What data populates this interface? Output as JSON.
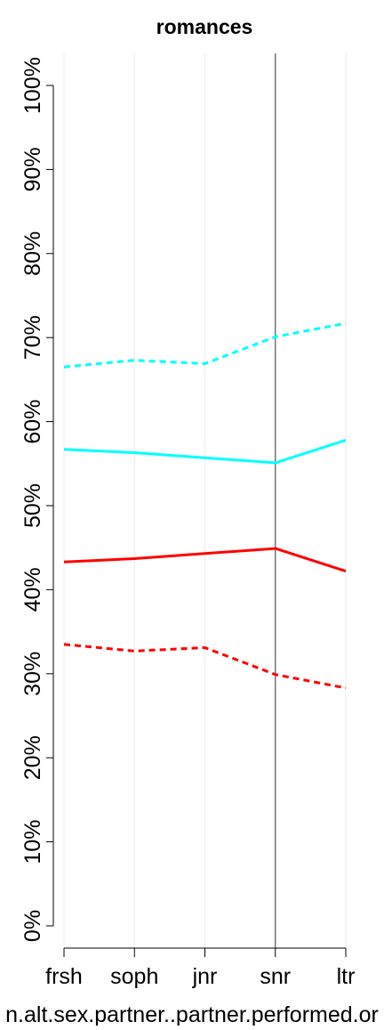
{
  "chart_data": {
    "type": "line",
    "title": "romances",
    "xlabel": "n.alt.sex.partner..partner.performed.or",
    "ylabel": "",
    "categories": [
      "frsh",
      "soph",
      "jnr",
      "snr",
      "ltr"
    ],
    "ylim": [
      0,
      100
    ],
    "y_ticks": [
      "0%",
      "10%",
      "20%",
      "30%",
      "40%",
      "50%",
      "60%",
      "70%",
      "80%",
      "90%",
      "100%"
    ],
    "grid": "vertical light gridlines",
    "reference_line_category": "snr",
    "series": [
      {
        "color": "#00FFFF",
        "style": "dashed",
        "values": [
          66.5,
          67.3,
          66.9,
          70.1,
          71.7
        ]
      },
      {
        "color": "#00FFFF",
        "style": "solid",
        "values": [
          56.7,
          56.3,
          55.7,
          55.1,
          57.8
        ]
      },
      {
        "color": "#FF0000",
        "style": "solid",
        "values": [
          43.3,
          43.7,
          44.3,
          44.9,
          42.2
        ]
      },
      {
        "color": "#FF0000",
        "style": "dashed",
        "values": [
          33.5,
          32.7,
          33.1,
          29.9,
          28.3
        ]
      }
    ]
  }
}
